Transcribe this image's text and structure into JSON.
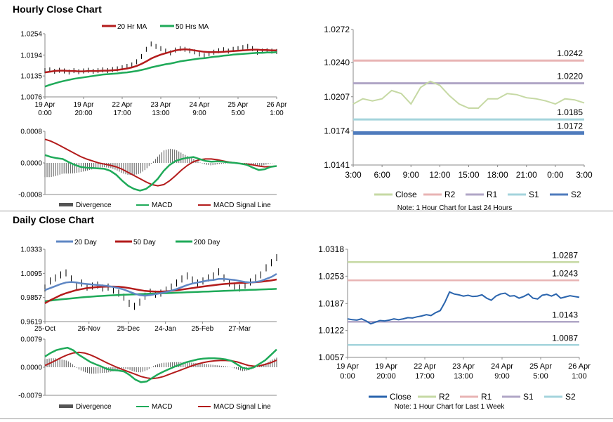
{
  "sections": {
    "hourly_title": "Hourly Close Chart",
    "daily_title": "Daily Close Chart"
  },
  "colors": {
    "ma20": "#b31b1b",
    "ma50": "#1faa59",
    "ma200": "#1faa59",
    "ma20_daily": "#5f87c4",
    "price_bar": "#000000",
    "macd": "#1faa59",
    "signal": "#b31b1b",
    "divergence": "#555555",
    "close_h": "#c6d9a4",
    "r2_h": "#e8b4b4",
    "r1_h": "#b0a6c6",
    "s1_h": "#a4d4dc",
    "s2_h": "#4f7bbd",
    "close_d": "#2a64ad",
    "r2_d": "#c6d9a4",
    "r1_d": "#e8b4b4",
    "s1_d": "#b0a6c6",
    "s2_d": "#a4d4dc"
  },
  "chart_data": [
    {
      "id": "hourly_price",
      "type": "line",
      "legend": [
        "20 Hr MA",
        "50 Hrs MA"
      ],
      "ylim": [
        1.0076,
        1.0254
      ],
      "yticks": [
        "1.0254",
        "1.0194",
        "1.0135",
        "1.0076"
      ],
      "yticks_values": [
        1.0254,
        1.0194,
        1.0135,
        1.0076
      ],
      "xticks": [
        [
          "19 Apr",
          "0:00"
        ],
        [
          "19 Apr",
          "20:00"
        ],
        [
          "22 Apr",
          "17:00"
        ],
        [
          "23 Apr",
          "13:00"
        ],
        [
          "24 Apr",
          "9:00"
        ],
        [
          "25 Apr",
          "5:00"
        ],
        [
          "26 Apr",
          "1:00"
        ]
      ],
      "series": [
        {
          "name": "Price",
          "values": [
            1.015,
            1.0152,
            1.0148,
            1.0151,
            1.0149,
            1.0146,
            1.015,
            1.0147,
            1.0149,
            1.0151,
            1.0148,
            1.015,
            1.0152,
            1.015,
            1.0153,
            1.0155,
            1.0158,
            1.0162,
            1.0166,
            1.0175,
            1.019,
            1.021,
            1.0225,
            1.0218,
            1.0212,
            1.0205,
            1.02,
            1.0208,
            1.0212,
            1.021,
            1.0206,
            1.0203,
            1.0197,
            1.0192,
            1.0198,
            1.0202,
            1.0206,
            1.0209,
            1.0205,
            1.021,
            1.0212,
            1.0215,
            1.0218,
            1.0212,
            1.0202,
            1.0205,
            1.0206,
            1.0205,
            1.0204
          ]
        },
        {
          "name": "20 Hr MA",
          "values": [
            1.0145,
            1.0147,
            1.0149,
            1.015,
            1.015,
            1.0149,
            1.0149,
            1.0148,
            1.0148,
            1.0149,
            1.0149,
            1.0149,
            1.015,
            1.015,
            1.0151,
            1.0152,
            1.0154,
            1.0156,
            1.0159,
            1.0163,
            1.0169,
            1.0176,
            1.0184,
            1.019,
            1.0195,
            1.0199,
            1.0203,
            1.0207,
            1.0209,
            1.021,
            1.0209,
            1.0207,
            1.0205,
            1.0203,
            1.0202,
            1.0202,
            1.0202,
            1.0203,
            1.0204,
            1.0205,
            1.0206,
            1.0207,
            1.0208,
            1.0209,
            1.0209,
            1.0208,
            1.0208,
            1.0207,
            1.0207
          ]
        },
        {
          "name": "50 Hrs MA",
          "values": [
            1.0105,
            1.011,
            1.0114,
            1.0118,
            1.0121,
            1.0124,
            1.0127,
            1.0129,
            1.0131,
            1.0133,
            1.0135,
            1.0137,
            1.0139,
            1.014,
            1.0141,
            1.0142,
            1.0144,
            1.0145,
            1.0147,
            1.0149,
            1.0152,
            1.0155,
            1.0159,
            1.0162,
            1.0165,
            1.0168,
            1.017,
            1.0173,
            1.0176,
            1.0178,
            1.018,
            1.0182,
            1.0184,
            1.0185,
            1.0187,
            1.0189,
            1.019,
            1.0192,
            1.0193,
            1.0195,
            1.0196,
            1.0197,
            1.0198,
            1.0199,
            1.02,
            1.02,
            1.0201,
            1.0201,
            1.0202
          ]
        }
      ]
    },
    {
      "id": "hourly_macd",
      "type": "bar",
      "legend": [
        "Divergence",
        "MACD",
        "MACD Signal Line"
      ],
      "ylim": [
        -0.0008,
        0.0008
      ],
      "yticks": [
        "0.0008",
        "0.0000",
        "-0.0008"
      ],
      "yticks_values": [
        0.0008,
        0.0,
        -0.0008
      ],
      "series": [
        {
          "name": "MACD",
          "values": [
            0.0002,
            0.00015,
            0.00012,
            0.0001,
            2e-05,
            -5e-05,
            -0.0001,
            -0.00012,
            -0.00013,
            -0.00014,
            -0.00015,
            -0.0002,
            -0.0003,
            -0.00045,
            -0.00058,
            -0.00066,
            -0.0007,
            -0.00066,
            -0.00055,
            -0.0004,
            -0.0002,
            -5e-05,
            5e-05,
            0.0001,
            0.00013,
            0.00015,
            0.0001,
            5e-05,
            3e-05,
            4e-05,
            3e-05,
            1e-05,
            0.0,
            -2e-05,
            -5e-05,
            -0.00012,
            -0.00018,
            -0.00016,
            -0.0001,
            -8e-05
          ]
        },
        {
          "name": "MACD Signal Line",
          "values": [
            0.0006,
            0.00055,
            0.00048,
            0.0004,
            0.00032,
            0.00024,
            0.00016,
            0.0001,
            5e-05,
            0.0,
            -3e-05,
            -6e-05,
            -0.0001,
            -0.00016,
            -0.00024,
            -0.00032,
            -0.0004,
            -0.00048,
            -0.00055,
            -0.00058,
            -0.00055,
            -0.00045,
            -0.00032,
            -0.00018,
            -6e-05,
            3e-05,
            8e-05,
            0.0001,
            0.0001,
            8e-05,
            5e-05,
            2e-05,
            0.0,
            -2e-05,
            -3e-05,
            -5e-05,
            -8e-05,
            -0.0001,
            -9e-05,
            -8e-05
          ]
        }
      ]
    },
    {
      "id": "hourly_levels",
      "type": "line",
      "ylim": [
        1.0141,
        1.0272
      ],
      "yticks": [
        "1.0272",
        "1.0240",
        "1.0207",
        "1.0174",
        "1.0141"
      ],
      "yticks_values": [
        1.0272,
        1.024,
        1.0207,
        1.0174,
        1.0141
      ],
      "xticks": [
        "3:00",
        "6:00",
        "9:00",
        "12:00",
        "15:00",
        "18:00",
        "21:00",
        "0:00",
        "3:00"
      ],
      "legend": [
        "Close",
        "R2",
        "R1",
        "S1",
        "S2"
      ],
      "levels": {
        "R2": 1.0242,
        "R1": 1.022,
        "S1": 1.0185,
        "S2": 1.0172
      },
      "level_labels": {
        "R2": "1.0242",
        "R1": "1.0220",
        "S1": "1.0185",
        "S2": "1.0172"
      },
      "series": [
        {
          "name": "Close",
          "values": [
            1.02,
            1.0205,
            1.0203,
            1.0205,
            1.0213,
            1.021,
            1.02,
            1.0216,
            1.0222,
            1.0218,
            1.0208,
            1.02,
            1.0196,
            1.0196,
            1.0205,
            1.0205,
            1.021,
            1.0209,
            1.0206,
            1.0205,
            1.0203,
            1.02,
            1.0205,
            1.0204,
            1.0201
          ]
        }
      ],
      "note": "Note: 1 Hour Chart for Last 24 Hours"
    },
    {
      "id": "daily_price",
      "type": "line",
      "legend": [
        "20 Day",
        "50 Day",
        "200 Day"
      ],
      "ylim": [
        0.9619,
        1.0333
      ],
      "yticks": [
        "1.0333",
        "1.0095",
        "0.9857",
        "0.9619"
      ],
      "yticks_values": [
        1.0333,
        1.0095,
        0.9857,
        0.9619
      ],
      "xticks": [
        "25-Oct",
        "26-Nov",
        "25-Dec",
        "24-Jan",
        "25-Feb",
        "27-Mar"
      ],
      "series": [
        {
          "name": "Price",
          "values": [
            0.995,
            1.002,
            1.005,
            1.008,
            1.01,
            1.004,
            0.997,
            1.0,
            0.996,
            0.997,
            0.998,
            0.995,
            0.996,
            0.993,
            0.99,
            0.986,
            0.98,
            0.977,
            0.981,
            0.987,
            0.991,
            0.989,
            0.99,
            0.993,
            0.996,
            1.0,
            1.004,
            1.007,
            1.003,
            1.0,
            1.002,
            1.005,
            1.007,
            1.011,
            1.005,
            1.0,
            0.997,
            0.995,
            0.998,
            1.001,
            1.005,
            1.008,
            1.015,
            1.02,
            1.025
          ]
        },
        {
          "name": "20 Day",
          "values": [
            0.993,
            0.995,
            0.997,
            0.999,
            1.0005,
            1.001,
            1.0005,
            0.9995,
            0.999,
            0.9985,
            0.998,
            0.9975,
            0.997,
            0.996,
            0.995,
            0.9935,
            0.9915,
            0.9895,
            0.988,
            0.9875,
            0.988,
            0.989,
            0.99,
            0.991,
            0.9925,
            0.994,
            0.996,
            0.998,
            0.9995,
            1.0005,
            1.0015,
            1.0025,
            1.003,
            1.004,
            1.004,
            1.0035,
            1.003,
            1.002,
            1.001,
            1.0005,
            1.001,
            1.002,
            1.004,
            1.006,
            1.009
          ]
        },
        {
          "name": "50 Day",
          "values": [
            0.98,
            0.983,
            0.9855,
            0.988,
            0.99,
            0.9915,
            0.993,
            0.994,
            0.995,
            0.9955,
            0.996,
            0.9963,
            0.9965,
            0.9965,
            0.9963,
            0.9958,
            0.995,
            0.994,
            0.993,
            0.9922,
            0.9918,
            0.9915,
            0.9915,
            0.9918,
            0.9922,
            0.9928,
            0.9935,
            0.9943,
            0.995,
            0.9958,
            0.9965,
            0.9972,
            0.9978,
            0.9985,
            0.999,
            0.9994,
            0.9997,
            1.0,
            1.0002,
            1.0005,
            1.0008,
            1.0012,
            1.0018,
            1.0025,
            1.0035
          ]
        },
        {
          "name": "200 Day",
          "values": [
            0.982,
            0.9826,
            0.9832,
            0.9838,
            0.9843,
            0.9848,
            0.9853,
            0.9858,
            0.9862,
            0.9866,
            0.987,
            0.9873,
            0.9876,
            0.9879,
            0.9882,
            0.9884,
            0.9886,
            0.9888,
            0.989,
            0.9892,
            0.9894,
            0.9896,
            0.9898,
            0.99,
            0.9902,
            0.9904,
            0.9906,
            0.9908,
            0.991,
            0.9912,
            0.9914,
            0.9916,
            0.9918,
            0.992,
            0.9922,
            0.9924,
            0.9926,
            0.9928,
            0.993,
            0.9932,
            0.9934,
            0.9936,
            0.9938,
            0.994,
            0.9942
          ]
        }
      ]
    },
    {
      "id": "daily_macd",
      "type": "bar",
      "legend": [
        "Divergence",
        "MACD",
        "MACD Signal Line"
      ],
      "ylim": [
        -0.0079,
        0.0079
      ],
      "yticks": [
        "0.0079",
        "0.0000",
        "-0.0079"
      ],
      "yticks_values": [
        0.0079,
        0.0,
        -0.0079
      ],
      "series": [
        {
          "name": "MACD",
          "values": [
            0.003,
            0.004,
            0.0048,
            0.0052,
            0.0055,
            0.0048,
            0.0035,
            0.0025,
            0.0015,
            0.0008,
            0.0002,
            -0.0005,
            -0.0008,
            -0.0009,
            -0.0012,
            -0.0022,
            -0.0035,
            -0.0042,
            -0.004,
            -0.003,
            -0.002,
            -0.0012,
            -0.0005,
            0.0002,
            0.0008,
            0.0014,
            0.0018,
            0.0022,
            0.0024,
            0.0025,
            0.0025,
            0.0024,
            0.0022,
            0.0018,
            0.0008,
            -0.0002,
            -0.0005,
            0.0,
            0.001,
            0.002,
            0.0035,
            0.005
          ]
        },
        {
          "name": "MACD Signal Line",
          "values": [
            0.0005,
            0.0012,
            0.002,
            0.0028,
            0.0035,
            0.004,
            0.0042,
            0.004,
            0.0035,
            0.0028,
            0.002,
            0.0012,
            0.0005,
            -0.0002,
            -0.0008,
            -0.0014,
            -0.002,
            -0.0026,
            -0.003,
            -0.0032,
            -0.003,
            -0.0026,
            -0.002,
            -0.0014,
            -0.0008,
            -0.0002,
            0.0004,
            0.0009,
            0.0013,
            0.0016,
            0.0018,
            0.0019,
            0.0019,
            0.0018,
            0.0015,
            0.001,
            0.0005,
            0.0003,
            0.0004,
            0.0008,
            0.0013,
            0.002
          ]
        }
      ]
    },
    {
      "id": "daily_levels",
      "type": "line",
      "ylim": [
        1.0057,
        1.0318
      ],
      "yticks": [
        "1.0318",
        "1.0253",
        "1.0187",
        "1.0122",
        "1.0057"
      ],
      "yticks_values": [
        1.0318,
        1.0253,
        1.0187,
        1.0122,
        1.0057
      ],
      "xticks": [
        [
          "19 Apr",
          "0:00"
        ],
        [
          "19 Apr",
          "20:00"
        ],
        [
          "22 Apr",
          "17:00"
        ],
        [
          "23 Apr",
          "13:00"
        ],
        [
          "24 Apr",
          "9:00"
        ],
        [
          "25 Apr",
          "5:00"
        ],
        [
          "26 Apr",
          "1:00"
        ]
      ],
      "legend": [
        "Close",
        "R2",
        "R1",
        "S1",
        "S2"
      ],
      "levels": {
        "R2": 1.0287,
        "R1": 1.0243,
        "S1": 1.0143,
        "S2": 1.0087
      },
      "level_labels": {
        "R2": "1.0287",
        "R1": "1.0243",
        "S1": "1.0143",
        "S2": "1.0087"
      },
      "series": [
        {
          "name": "Close",
          "values": [
            1.015,
            1.0148,
            1.0147,
            1.015,
            1.0145,
            1.0138,
            1.0142,
            1.0146,
            1.0145,
            1.0147,
            1.015,
            1.0148,
            1.015,
            1.0153,
            1.0152,
            1.0155,
            1.0157,
            1.016,
            1.0158,
            1.0165,
            1.017,
            1.019,
            1.0215,
            1.021,
            1.0208,
            1.0205,
            1.0207,
            1.0204,
            1.0205,
            1.0208,
            1.02,
            1.0195,
            1.0205,
            1.021,
            1.0212,
            1.0205,
            1.0206,
            1.02,
            1.0204,
            1.021,
            1.02,
            1.0198,
            1.0207,
            1.0209,
            1.0205,
            1.021,
            1.02,
            1.0203,
            1.0206,
            1.0204,
            1.0202
          ]
        }
      ],
      "note": "Note: 1 Hour Chart for Last 1 Week"
    }
  ]
}
